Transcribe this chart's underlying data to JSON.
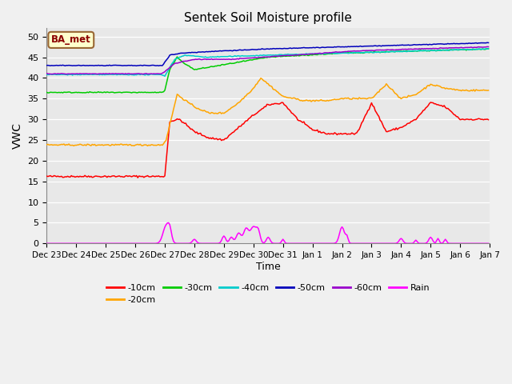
{
  "title": "Sentek Soil Moisture profile",
  "xlabel": "Time",
  "ylabel": "VWC",
  "legend_label": "BA_met",
  "ylim": [
    0,
    52
  ],
  "yticks": [
    0,
    5,
    10,
    15,
    20,
    25,
    30,
    35,
    40,
    45,
    50
  ],
  "x_tick_labels": [
    "Dec 23",
    "Dec 24",
    "Dec 25",
    "Dec 26",
    "Dec 27",
    "Dec 28",
    "Dec 29",
    "Dec 30",
    "Dec 31",
    "Jan 1",
    "Jan 2",
    "Jan 3",
    "Jan 4",
    "Jan 5",
    "Jan 6",
    "Jan 7"
  ],
  "colors": {
    "10cm": "#ff0000",
    "20cm": "#ffa500",
    "30cm": "#00cc00",
    "40cm": "#00cccc",
    "50cm": "#0000bb",
    "60cm": "#9900cc",
    "rain": "#ff00ff"
  },
  "background_color": "#e8e8e8",
  "grid_color": "#ffffff",
  "fig_bg": "#f0f0f0"
}
